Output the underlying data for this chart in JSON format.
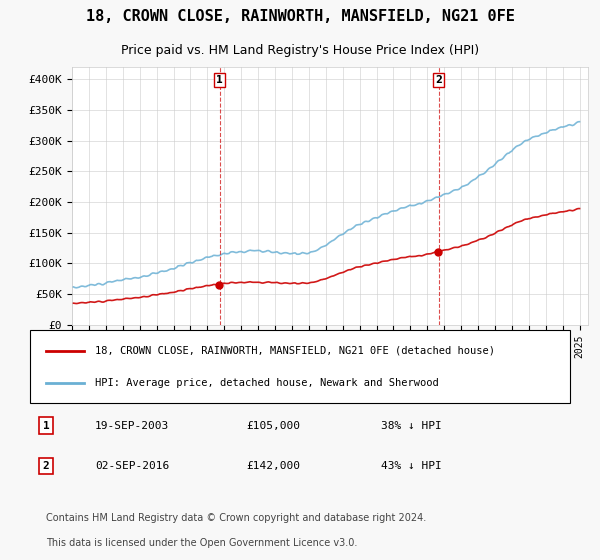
{
  "title": "18, CROWN CLOSE, RAINWORTH, MANSFIELD, NG21 0FE",
  "subtitle": "Price paid vs. HM Land Registry's House Price Index (HPI)",
  "title_fontsize": 11,
  "subtitle_fontsize": 9,
  "hpi_color": "#6ab0d4",
  "price_color": "#cc0000",
  "background_color": "#f0f4fa",
  "plot_bg_color": "#ffffff",
  "ylim": [
    0,
    420000
  ],
  "yticks": [
    0,
    50000,
    100000,
    150000,
    200000,
    250000,
    300000,
    350000,
    400000
  ],
  "ytick_labels": [
    "£0",
    "£50K",
    "£100K",
    "£150K",
    "£200K",
    "£250K",
    "£300K",
    "£350K",
    "£400K"
  ],
  "sale1_date": "19-SEP-2003",
  "sale1_price": 105000,
  "sale1_label": "38% ↓ HPI",
  "sale1_x": 2003.72,
  "sale2_date": "02-SEP-2016",
  "sale2_price": 142000,
  "sale2_label": "43% ↓ HPI",
  "sale2_x": 2016.67,
  "legend_line1": "18, CROWN CLOSE, RAINWORTH, MANSFIELD, NG21 0FE (detached house)",
  "legend_line2": "HPI: Average price, detached house, Newark and Sherwood",
  "footer1": "Contains HM Land Registry data © Crown copyright and database right 2024.",
  "footer2": "This data is licensed under the Open Government Licence v3.0."
}
